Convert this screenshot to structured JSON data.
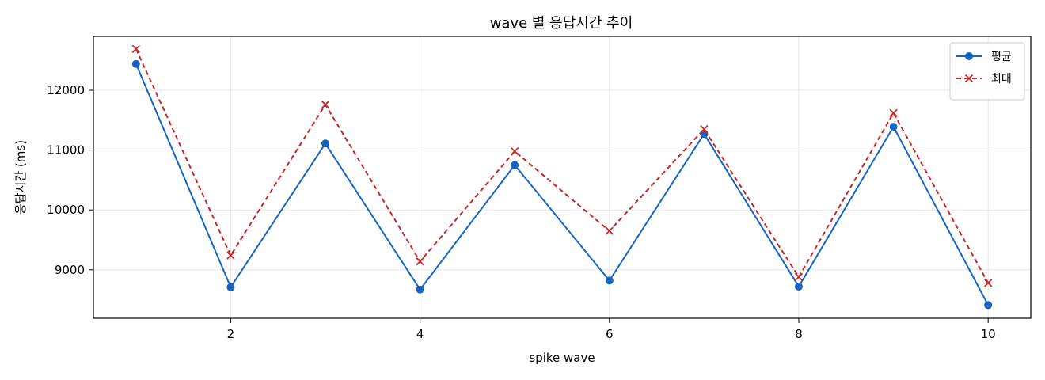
{
  "chart_data": {
    "type": "line",
    "title": "wave 별 응답시간 추이",
    "xlabel": "spike wave",
    "ylabel": "응답시간 (ms)",
    "xlim": [
      0.55,
      10.45
    ],
    "ylim": [
      8190,
      12900
    ],
    "xticks": [
      2,
      4,
      6,
      8,
      10
    ],
    "yticks": [
      9000,
      10000,
      11000,
      12000
    ],
    "grid": true,
    "legend_position": "top-right",
    "x": [
      1,
      2,
      3,
      4,
      5,
      6,
      7,
      8,
      9,
      10
    ],
    "series": [
      {
        "name": "평균",
        "color": "#1565c0",
        "marker": "circle",
        "line_style": "solid",
        "values": [
          12440,
          8710,
          11110,
          8670,
          10750,
          8820,
          11270,
          8720,
          11390,
          8410
        ]
      },
      {
        "name": "최대",
        "color": "#c62828",
        "marker": "x",
        "line_style": "dashed",
        "values": [
          12690,
          9240,
          11760,
          9140,
          10980,
          9650,
          11350,
          8880,
          11620,
          8780
        ]
      }
    ]
  }
}
